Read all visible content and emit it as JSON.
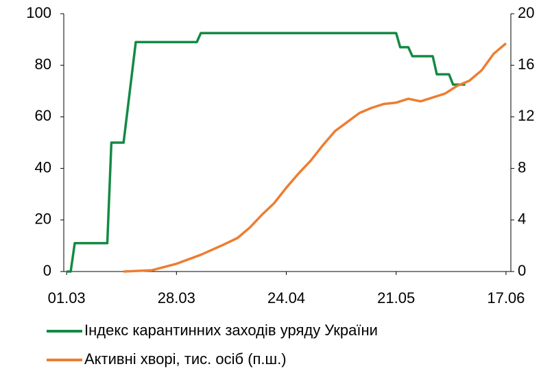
{
  "chart_data": {
    "type": "line",
    "xlim": [
      -0.7,
      109.2
    ],
    "xticks": [
      {
        "value": 0,
        "label": "01.03"
      },
      {
        "value": 27,
        "label": "28.03"
      },
      {
        "value": 54,
        "label": "24.04"
      },
      {
        "value": 81,
        "label": "21.05"
      },
      {
        "value": 108,
        "label": "17.06"
      }
    ],
    "ylim": [
      0,
      100
    ],
    "yticks": [
      0,
      20,
      40,
      60,
      80,
      100
    ],
    "y2lim": [
      0,
      20
    ],
    "y2ticks": [
      0,
      4,
      8,
      12,
      16,
      20
    ],
    "series": [
      {
        "name": "Індекс карантинних заходів уряду України",
        "color": "#138a43",
        "x": [
          0,
          1,
          2,
          10,
          11,
          14,
          17,
          32,
          33,
          81,
          82,
          84,
          85,
          90,
          91,
          94,
          95,
          98
        ],
        "values": [
          0,
          0,
          11,
          11,
          50,
          50,
          89,
          89,
          92.5,
          92.5,
          87,
          87,
          83.5,
          83.5,
          76.5,
          76.5,
          72.5,
          72.5
        ]
      },
      {
        "name": "Активні хворі, тис. осіб (п.ш.)",
        "color": "#ed7d31",
        "axis": "y2",
        "x": [
          14,
          21,
          27,
          33,
          38,
          42,
          45,
          48,
          51,
          54,
          57,
          60,
          63,
          66,
          69,
          72,
          75,
          78,
          81,
          84,
          87,
          90,
          93,
          96,
          99,
          102,
          105,
          108
        ],
        "values": [
          0,
          0.1,
          0.6,
          1.3,
          2.0,
          2.6,
          3.4,
          4.4,
          5.3,
          6.5,
          7.6,
          8.6,
          9.8,
          10.9,
          11.6,
          12.3,
          12.7,
          13.0,
          13.1,
          13.4,
          13.2,
          13.5,
          13.8,
          14.4,
          14.8,
          15.6,
          16.9,
          17.7
        ]
      }
    ]
  }
}
